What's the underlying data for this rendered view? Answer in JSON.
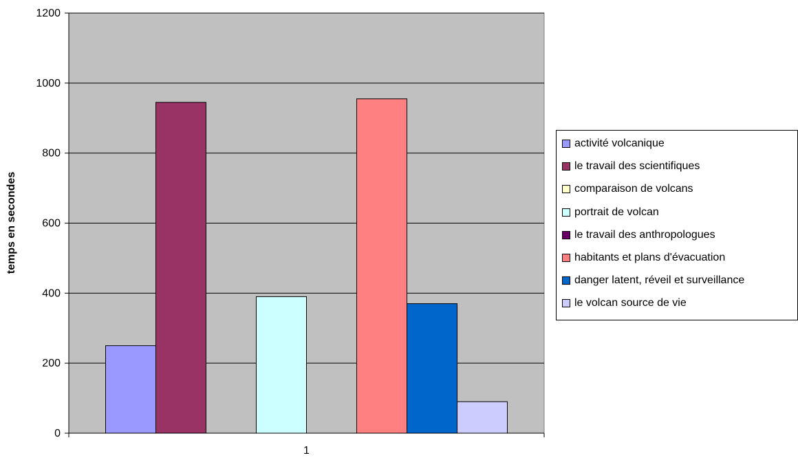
{
  "chart_data": {
    "type": "bar",
    "title": "",
    "xlabel": "",
    "ylabel": "temps en secondes",
    "categories": [
      "1"
    ],
    "ylim": [
      0,
      1200
    ],
    "yticks": [
      0,
      200,
      400,
      600,
      800,
      1000,
      1200
    ],
    "grid": true,
    "legend_position": "right",
    "background_color": "#c0c0c0",
    "series": [
      {
        "name": "activité volcanique",
        "values": [
          250
        ],
        "color": "#9999ff"
      },
      {
        "name": "le travail des scientifiques",
        "values": [
          945
        ],
        "color": "#993366"
      },
      {
        "name": "comparaison de volcans",
        "values": [
          0
        ],
        "color": "#ffffcc"
      },
      {
        "name": "portrait de volcan",
        "values": [
          390
        ],
        "color": "#ccffff"
      },
      {
        "name": "le travail des anthropologues",
        "values": [
          0
        ],
        "color": "#660066"
      },
      {
        "name": "habitants et plans d'évacuation",
        "values": [
          955
        ],
        "color": "#ff8080"
      },
      {
        "name": "danger latent, réveil et surveillance",
        "values": [
          370
        ],
        "color": "#0066cc"
      },
      {
        "name": "le volcan source de vie",
        "values": [
          90
        ],
        "color": "#ccccff"
      }
    ]
  }
}
